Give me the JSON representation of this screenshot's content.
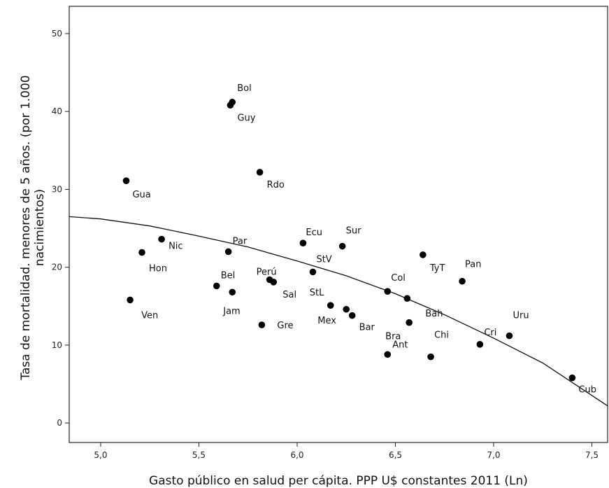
{
  "chart_data": {
    "type": "scatter",
    "title": "",
    "xlabel": "Gasto público en salud per cápita. PPP U$ constantes 2011 (Ln)",
    "ylabel_lines": [
      "Tasa de mortalidad. menores de 5 años. (por 1.000",
      "nacimientos)"
    ],
    "xlim": [
      4.84,
      7.58
    ],
    "ylim": [
      -2.5,
      53.5
    ],
    "xticks": [
      5.0,
      5.5,
      6.0,
      6.5,
      7.0,
      7.5
    ],
    "xtick_labels": [
      "5,0",
      "5,5",
      "6,0",
      "6,5",
      "7,0",
      "7,5"
    ],
    "yticks": [
      0,
      10,
      20,
      30,
      40,
      50
    ],
    "ytick_labels": [
      "0",
      "10",
      "20",
      "30",
      "40",
      "50"
    ],
    "grid": false,
    "points": [
      {
        "label": "Bol",
        "x": 5.67,
        "y": 41.2
      },
      {
        "label": "Guy",
        "x": 5.66,
        "y": 40.8
      },
      {
        "label": "Rdo",
        "x": 5.81,
        "y": 32.2
      },
      {
        "label": "Gua",
        "x": 5.13,
        "y": 31.1
      },
      {
        "label": "Nic",
        "x": 5.31,
        "y": 23.6
      },
      {
        "label": "Hon",
        "x": 5.21,
        "y": 21.9
      },
      {
        "label": "Ven",
        "x": 5.15,
        "y": 15.8
      },
      {
        "label": "Par",
        "x": 5.65,
        "y": 22.0
      },
      {
        "label": "Bel",
        "x": 5.59,
        "y": 17.6
      },
      {
        "label": "Jam",
        "x": 5.67,
        "y": 16.8
      },
      {
        "label": "Perú",
        "x": 5.86,
        "y": 18.4
      },
      {
        "label": "Sal",
        "x": 5.88,
        "y": 18.1
      },
      {
        "label": "Gre",
        "x": 5.82,
        "y": 12.6
      },
      {
        "label": "Ecu",
        "x": 6.03,
        "y": 23.1
      },
      {
        "label": "StV",
        "x": 6.08,
        "y": 19.4
      },
      {
        "label": "StL",
        "x": 6.17,
        "y": 15.1
      },
      {
        "label": "Sur",
        "x": 6.23,
        "y": 22.7
      },
      {
        "label": "Mex",
        "x": 6.25,
        "y": 14.6
      },
      {
        "label": "Bar",
        "x": 6.28,
        "y": 13.8
      },
      {
        "label": "Col",
        "x": 6.46,
        "y": 16.9
      },
      {
        "label": "Ant",
        "x": 6.46,
        "y": 8.8
      },
      {
        "label": "Bah",
        "x": 6.56,
        "y": 16.0
      },
      {
        "label": "Bra",
        "x": 6.57,
        "y": 12.9
      },
      {
        "label": "TyT",
        "x": 6.64,
        "y": 21.6
      },
      {
        "label": "Chi",
        "x": 6.68,
        "y": 8.5
      },
      {
        "label": "Pan",
        "x": 6.84,
        "y": 18.2
      },
      {
        "label": "Cri",
        "x": 6.93,
        "y": 10.1
      },
      {
        "label": "Uru",
        "x": 7.08,
        "y": 11.2
      },
      {
        "label": "Cub",
        "x": 7.4,
        "y": 5.8
      }
    ],
    "fit_line": {
      "type": "quadratic",
      "x": [
        4.84,
        5.0,
        5.25,
        5.5,
        5.75,
        6.0,
        6.25,
        6.5,
        6.75,
        7.0,
        7.25,
        7.58
      ],
      "y": [
        26.5,
        26.2,
        25.3,
        24.0,
        22.6,
        20.8,
        18.9,
        16.6,
        13.9,
        10.9,
        7.7,
        2.2
      ]
    }
  }
}
